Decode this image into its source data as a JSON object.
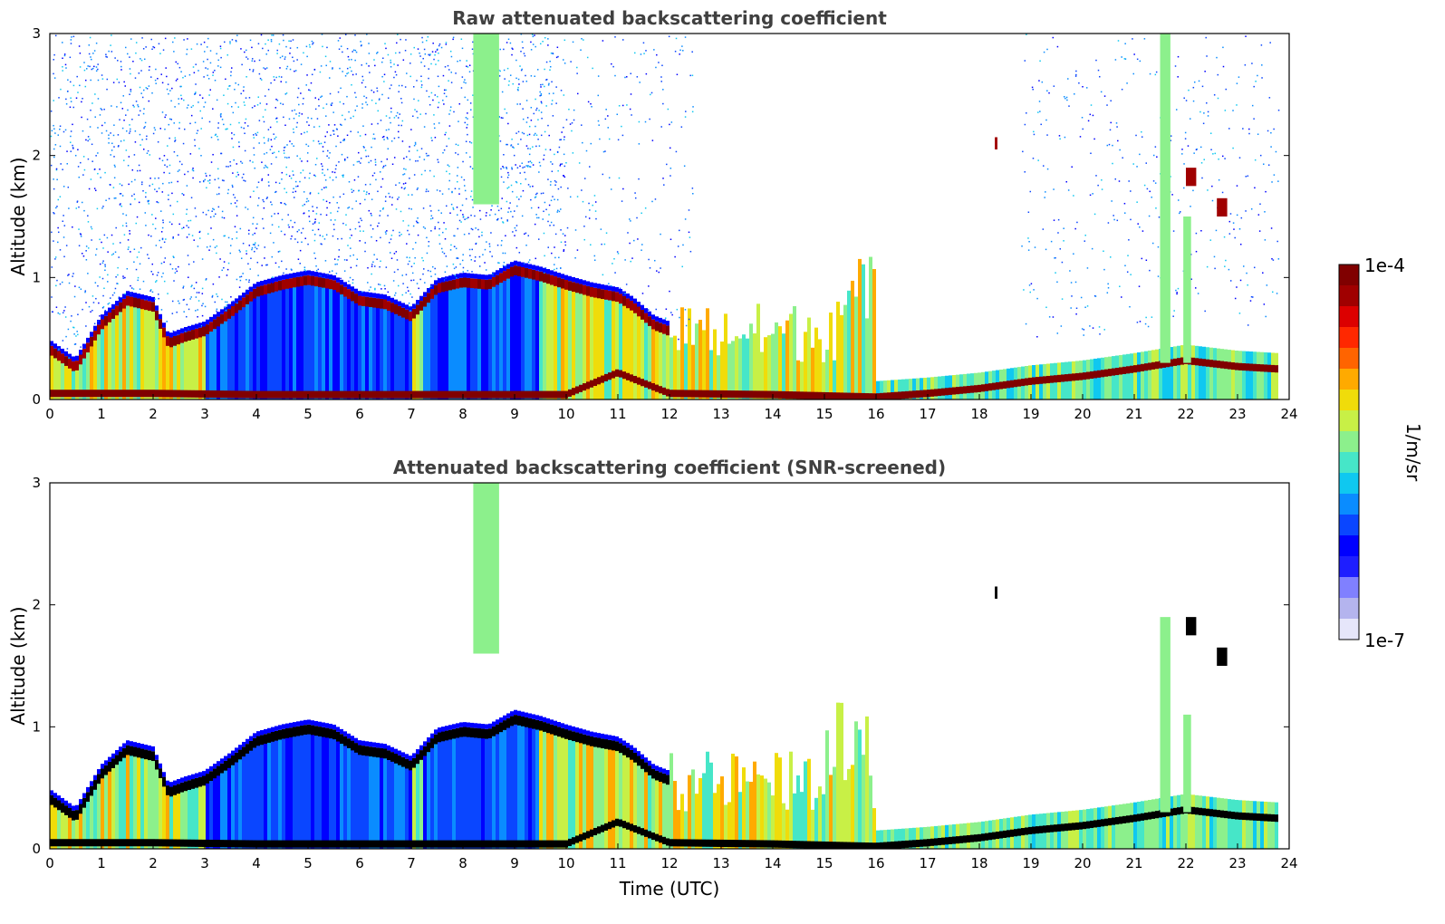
{
  "figure": {
    "colorbar": {
      "max_label": "1e-4",
      "min_label": "1e-7",
      "unit_label": "1/m/sr",
      "colors": [
        "#e6e6fa",
        "#b4b4ee",
        "#8080ff",
        "#1e1eff",
        "#0000ff",
        "#0a46ff",
        "#0a8cff",
        "#0fc8f0",
        "#46e6c8",
        "#8cf08c",
        "#c8f046",
        "#f0dc0a",
        "#ffaa00",
        "#ff6400",
        "#ff2800",
        "#dc0000",
        "#a00000",
        "#800000"
      ]
    },
    "xlabel": "Time (UTC)"
  },
  "chart_data": [
    {
      "type": "heatmap",
      "title": "Raw attenuated backscattering coefficient",
      "xlabel": "",
      "ylabel": "Altitude (km)",
      "xlim": [
        0,
        24
      ],
      "ylim": [
        0,
        3
      ],
      "xticks": [
        "0",
        "1",
        "2",
        "3",
        "4",
        "5",
        "6",
        "7",
        "8",
        "9",
        "10",
        "11",
        "12",
        "13",
        "14",
        "15",
        "16",
        "17",
        "18",
        "19",
        "20",
        "21",
        "22",
        "23",
        "24"
      ],
      "yticks": [
        "0",
        "1",
        "2",
        "3"
      ],
      "color_scale": {
        "min": 1e-07,
        "max": 0.0001,
        "scale": "log",
        "unit": "1/m/sr"
      },
      "screened": false,
      "boundary_layer_top_km": [
        [
          0,
          0.45
        ],
        [
          0.5,
          0.3
        ],
        [
          1,
          0.65
        ],
        [
          1.5,
          0.85
        ],
        [
          2,
          0.8
        ],
        [
          2.3,
          0.5
        ],
        [
          2.6,
          0.55
        ],
        [
          3,
          0.6
        ],
        [
          3.5,
          0.75
        ],
        [
          4,
          0.92
        ],
        [
          4.5,
          0.98
        ],
        [
          5,
          1.02
        ],
        [
          5.5,
          0.98
        ],
        [
          6,
          0.85
        ],
        [
          6.5,
          0.82
        ],
        [
          7,
          0.72
        ],
        [
          7.5,
          0.95
        ],
        [
          8,
          1.0
        ],
        [
          8.5,
          0.98
        ],
        [
          9,
          1.1
        ],
        [
          9.5,
          1.05
        ],
        [
          10,
          0.98
        ],
        [
          10.5,
          0.92
        ],
        [
          11,
          0.88
        ],
        [
          11.3,
          0.8
        ],
        [
          11.7,
          0.65
        ],
        [
          12,
          0.6
        ]
      ],
      "surface_layer_top_km": [
        [
          0,
          0.08
        ],
        [
          2,
          0.08
        ],
        [
          4,
          0.07
        ],
        [
          6,
          0.07
        ],
        [
          8,
          0.07
        ],
        [
          10,
          0.07
        ],
        [
          11,
          0.25
        ],
        [
          12,
          0.08
        ],
        [
          14,
          0.07
        ],
        [
          16,
          0.05
        ],
        [
          17,
          0.08
        ],
        [
          18,
          0.12
        ],
        [
          19,
          0.18
        ],
        [
          20,
          0.22
        ],
        [
          21,
          0.28
        ],
        [
          22,
          0.35
        ],
        [
          23,
          0.3
        ],
        [
          23.8,
          0.28
        ]
      ],
      "elevated_features": [
        {
          "x": [
            8.2,
            8.7
          ],
          "y": [
            1.6,
            3.0
          ],
          "kind": "ice cloud"
        },
        {
          "x": [
            21.5,
            21.7
          ],
          "y": [
            0.3,
            3.0
          ],
          "kind": "precipitation column"
        },
        {
          "x": [
            21.95,
            22.1
          ],
          "y": [
            0.3,
            1.5
          ],
          "kind": "precipitation column"
        },
        {
          "x": [
            22.0,
            22.2
          ],
          "y": [
            1.75,
            1.9
          ],
          "kind": "cloud"
        },
        {
          "x": [
            22.6,
            22.8
          ],
          "y": [
            1.5,
            1.65
          ],
          "kind": "cloud"
        },
        {
          "x": [
            18.3,
            18.35
          ],
          "y": [
            2.05,
            2.15
          ],
          "kind": "cloud"
        }
      ]
    },
    {
      "type": "heatmap",
      "title": "Attenuated backscattering coefficient (SNR-screened)",
      "xlabel": "Time (UTC)",
      "ylabel": "Altitude (km)",
      "xlim": [
        0,
        24
      ],
      "ylim": [
        0,
        3
      ],
      "xticks": [
        "0",
        "1",
        "2",
        "3",
        "4",
        "5",
        "6",
        "7",
        "8",
        "9",
        "10",
        "11",
        "12",
        "13",
        "14",
        "15",
        "16",
        "17",
        "18",
        "19",
        "20",
        "21",
        "22",
        "23",
        "24"
      ],
      "yticks": [
        "0",
        "1",
        "2",
        "3"
      ],
      "color_scale": {
        "min": 1e-07,
        "max": 0.0001,
        "scale": "log",
        "unit": "1/m/sr"
      },
      "screened": true,
      "boundary_layer_top_km": [
        [
          0,
          0.45
        ],
        [
          0.5,
          0.3
        ],
        [
          1,
          0.65
        ],
        [
          1.5,
          0.85
        ],
        [
          2,
          0.8
        ],
        [
          2.3,
          0.5
        ],
        [
          2.6,
          0.55
        ],
        [
          3,
          0.6
        ],
        [
          3.5,
          0.75
        ],
        [
          4,
          0.92
        ],
        [
          4.5,
          0.98
        ],
        [
          5,
          1.02
        ],
        [
          5.5,
          0.98
        ],
        [
          6,
          0.85
        ],
        [
          6.5,
          0.82
        ],
        [
          7,
          0.72
        ],
        [
          7.5,
          0.95
        ],
        [
          8,
          1.0
        ],
        [
          8.5,
          0.98
        ],
        [
          9,
          1.1
        ],
        [
          9.5,
          1.05
        ],
        [
          10,
          0.98
        ],
        [
          10.5,
          0.92
        ],
        [
          11,
          0.88
        ],
        [
          11.3,
          0.8
        ],
        [
          11.7,
          0.65
        ],
        [
          12,
          0.6
        ]
      ],
      "surface_layer_top_km": [
        [
          0,
          0.08
        ],
        [
          2,
          0.08
        ],
        [
          4,
          0.07
        ],
        [
          6,
          0.07
        ],
        [
          8,
          0.07
        ],
        [
          10,
          0.07
        ],
        [
          11,
          0.25
        ],
        [
          12,
          0.08
        ],
        [
          14,
          0.07
        ],
        [
          16,
          0.05
        ],
        [
          17,
          0.08
        ],
        [
          18,
          0.12
        ],
        [
          19,
          0.18
        ],
        [
          20,
          0.22
        ],
        [
          21,
          0.28
        ],
        [
          22,
          0.35
        ],
        [
          23,
          0.3
        ],
        [
          23.8,
          0.28
        ]
      ],
      "elevated_features": [
        {
          "x": [
            8.2,
            8.7
          ],
          "y": [
            1.6,
            3.0
          ],
          "kind": "ice cloud"
        },
        {
          "x": [
            21.5,
            21.7
          ],
          "y": [
            0.3,
            1.9
          ],
          "kind": "precipitation column"
        },
        {
          "x": [
            21.95,
            22.1
          ],
          "y": [
            0.3,
            1.1
          ],
          "kind": "precipitation column"
        },
        {
          "x": [
            22.0,
            22.2
          ],
          "y": [
            1.75,
            1.9
          ],
          "kind": "cloud"
        },
        {
          "x": [
            22.6,
            22.8
          ],
          "y": [
            1.5,
            1.65
          ],
          "kind": "cloud"
        },
        {
          "x": [
            18.3,
            18.35
          ],
          "y": [
            2.05,
            2.15
          ],
          "kind": "cloud"
        }
      ]
    }
  ]
}
